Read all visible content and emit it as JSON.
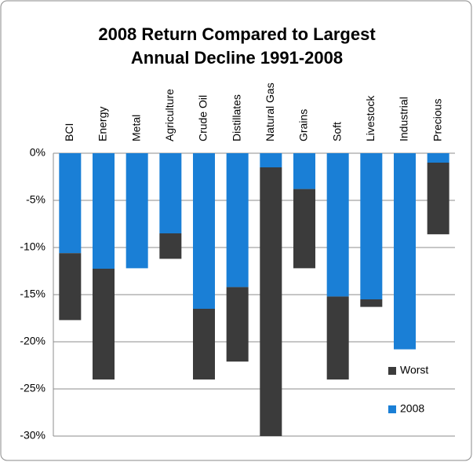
{
  "chart_data": {
    "type": "stacked_bar",
    "title": "2008 Return Compared to Largest Annual Decline 1991-2008",
    "categories": [
      "BCI",
      "Energy",
      "Metal",
      "Agriculture",
      "Crude Oil",
      "Distillates",
      "Natural Gas",
      "Grains",
      "Soft",
      "Livestock",
      "Industrial",
      "Precious"
    ],
    "series": [
      {
        "name": "2008",
        "color": "#1a7fd6",
        "values": [
          -10.6,
          -12.25,
          -12.2,
          -8.5,
          -16.5,
          -14.2,
          -1.5,
          -3.8,
          -15.2,
          -15.5,
          -20.8,
          -1.0
        ]
      },
      {
        "name": "Worst",
        "color": "#3b3b3b",
        "values": [
          -7.1,
          -11.75,
          0,
          -2.7,
          -7.5,
          -7.9,
          -28.5,
          -8.4,
          -8.8,
          -0.8,
          0,
          -7.6
        ]
      }
    ],
    "ylim": [
      -30,
      0
    ],
    "yticks": [
      {
        "value": 0,
        "label": "0%"
      },
      {
        "value": -5,
        "label": "-5%"
      },
      {
        "value": -10,
        "label": "-10%"
      },
      {
        "value": -15,
        "label": "-15%"
      },
      {
        "value": -20,
        "label": "-20%"
      },
      {
        "value": -25,
        "label": "-25%"
      },
      {
        "value": -30,
        "label": "-30%"
      }
    ],
    "grid": true,
    "legend_position": "lower right"
  }
}
